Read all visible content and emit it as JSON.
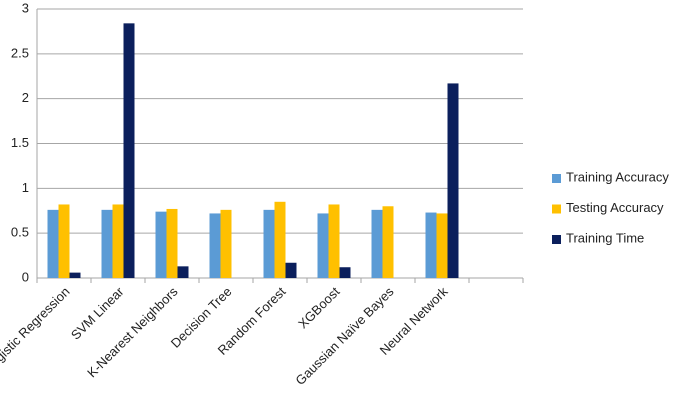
{
  "chart_data": {
    "type": "bar",
    "categories": [
      "Logistic Regression",
      "SVM Linear",
      "K-Nearest Neighbors",
      "Decision Tree",
      "Random Forest",
      "XGBoost",
      "Gaussian Naïve Bayes",
      "Neural Network",
      null
    ],
    "series": [
      {
        "name": "Training Accuracy",
        "color": "#5b9bd5",
        "values": [
          0.76,
          0.76,
          0.74,
          0.72,
          0.76,
          0.72,
          0.76,
          0.73,
          null
        ]
      },
      {
        "name": "Testing Accuracy",
        "color": "#ffc000",
        "values": [
          0.82,
          0.82,
          0.77,
          0.76,
          0.85,
          0.82,
          0.8,
          0.72,
          null
        ]
      },
      {
        "name": "Training Time",
        "color": "#0b1f5c",
        "values": [
          0.06,
          2.84,
          0.13,
          0,
          0.17,
          0.12,
          0,
          2.17,
          null
        ]
      }
    ],
    "ylim": [
      0,
      3
    ],
    "yticks": [
      0,
      0.5,
      1,
      1.5,
      2,
      2.5,
      3
    ],
    "grid": true,
    "legend": "right"
  }
}
